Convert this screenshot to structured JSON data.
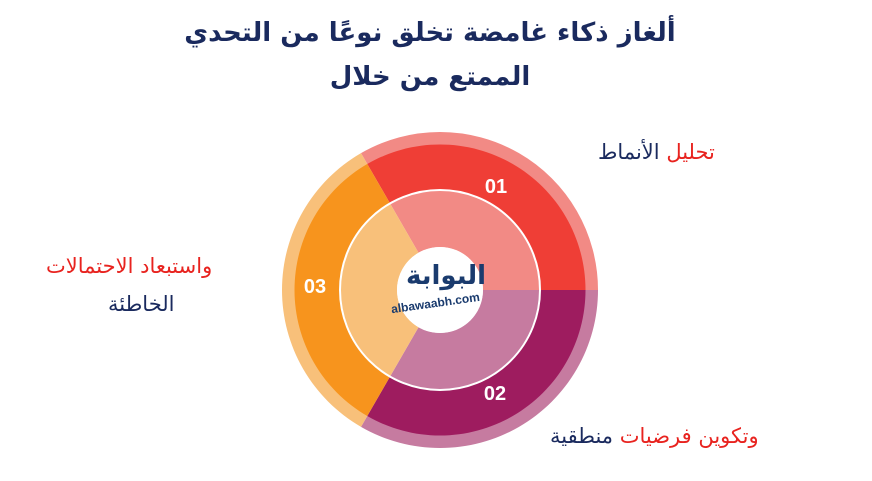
{
  "title": {
    "line1": "ألغاز ذكاء غامضة تخلق نوعًا من التحدي",
    "line2": "الممتع من خلال"
  },
  "segments": [
    {
      "number": "01",
      "label_red": "تحليل",
      "label_navy": "الأنماط",
      "dark": "#ef3e36",
      "light": "#f28a85"
    },
    {
      "number": "02",
      "label_red": "وتكوين فرضيات",
      "label_navy": "منطقية",
      "dark": "#9e1c5f",
      "light": "#c67ba0"
    },
    {
      "number": "03",
      "label_red": "واستبعاد الاحتمالات",
      "label_navy": "الخاطئة",
      "dark": "#f7941d",
      "light": "#f8c07a"
    }
  ],
  "logo": {
    "arabic": "البوابة",
    "latin": "albawaabh.com"
  },
  "colors": {
    "navy": "#1a2a5e",
    "red": "#e8231f"
  }
}
